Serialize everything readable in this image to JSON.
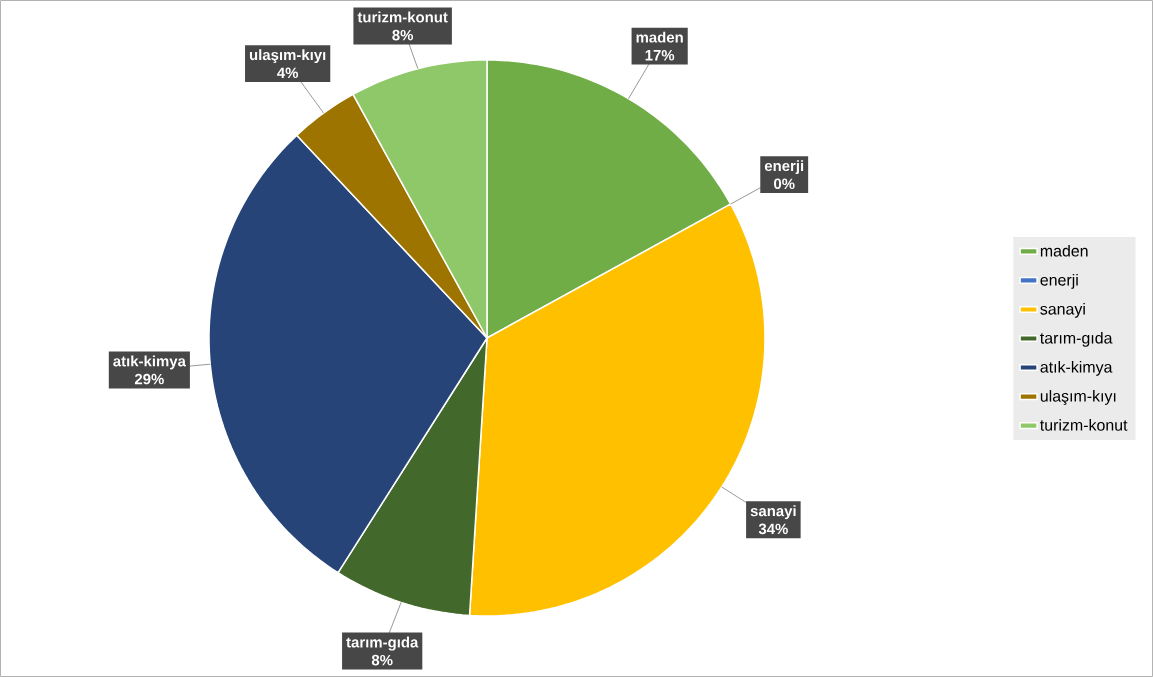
{
  "chart_data": {
    "type": "pie",
    "categories": [
      "maden",
      "enerji",
      "sanayi",
      "tarım-gıda",
      "atık-kimya",
      "ulaşım-kıyı",
      "turizm-konut"
    ],
    "values": [
      17,
      0,
      34,
      8,
      29,
      4,
      8
    ],
    "value_labels": [
      "17%",
      "0%",
      "34%",
      "8%",
      "29%",
      "4%",
      "8%"
    ],
    "colors": [
      "#70ad47",
      "#4472c4",
      "#ffc000",
      "#43682b",
      "#264478",
      "#9e7400",
      "#8fc868"
    ],
    "legend": "right"
  }
}
